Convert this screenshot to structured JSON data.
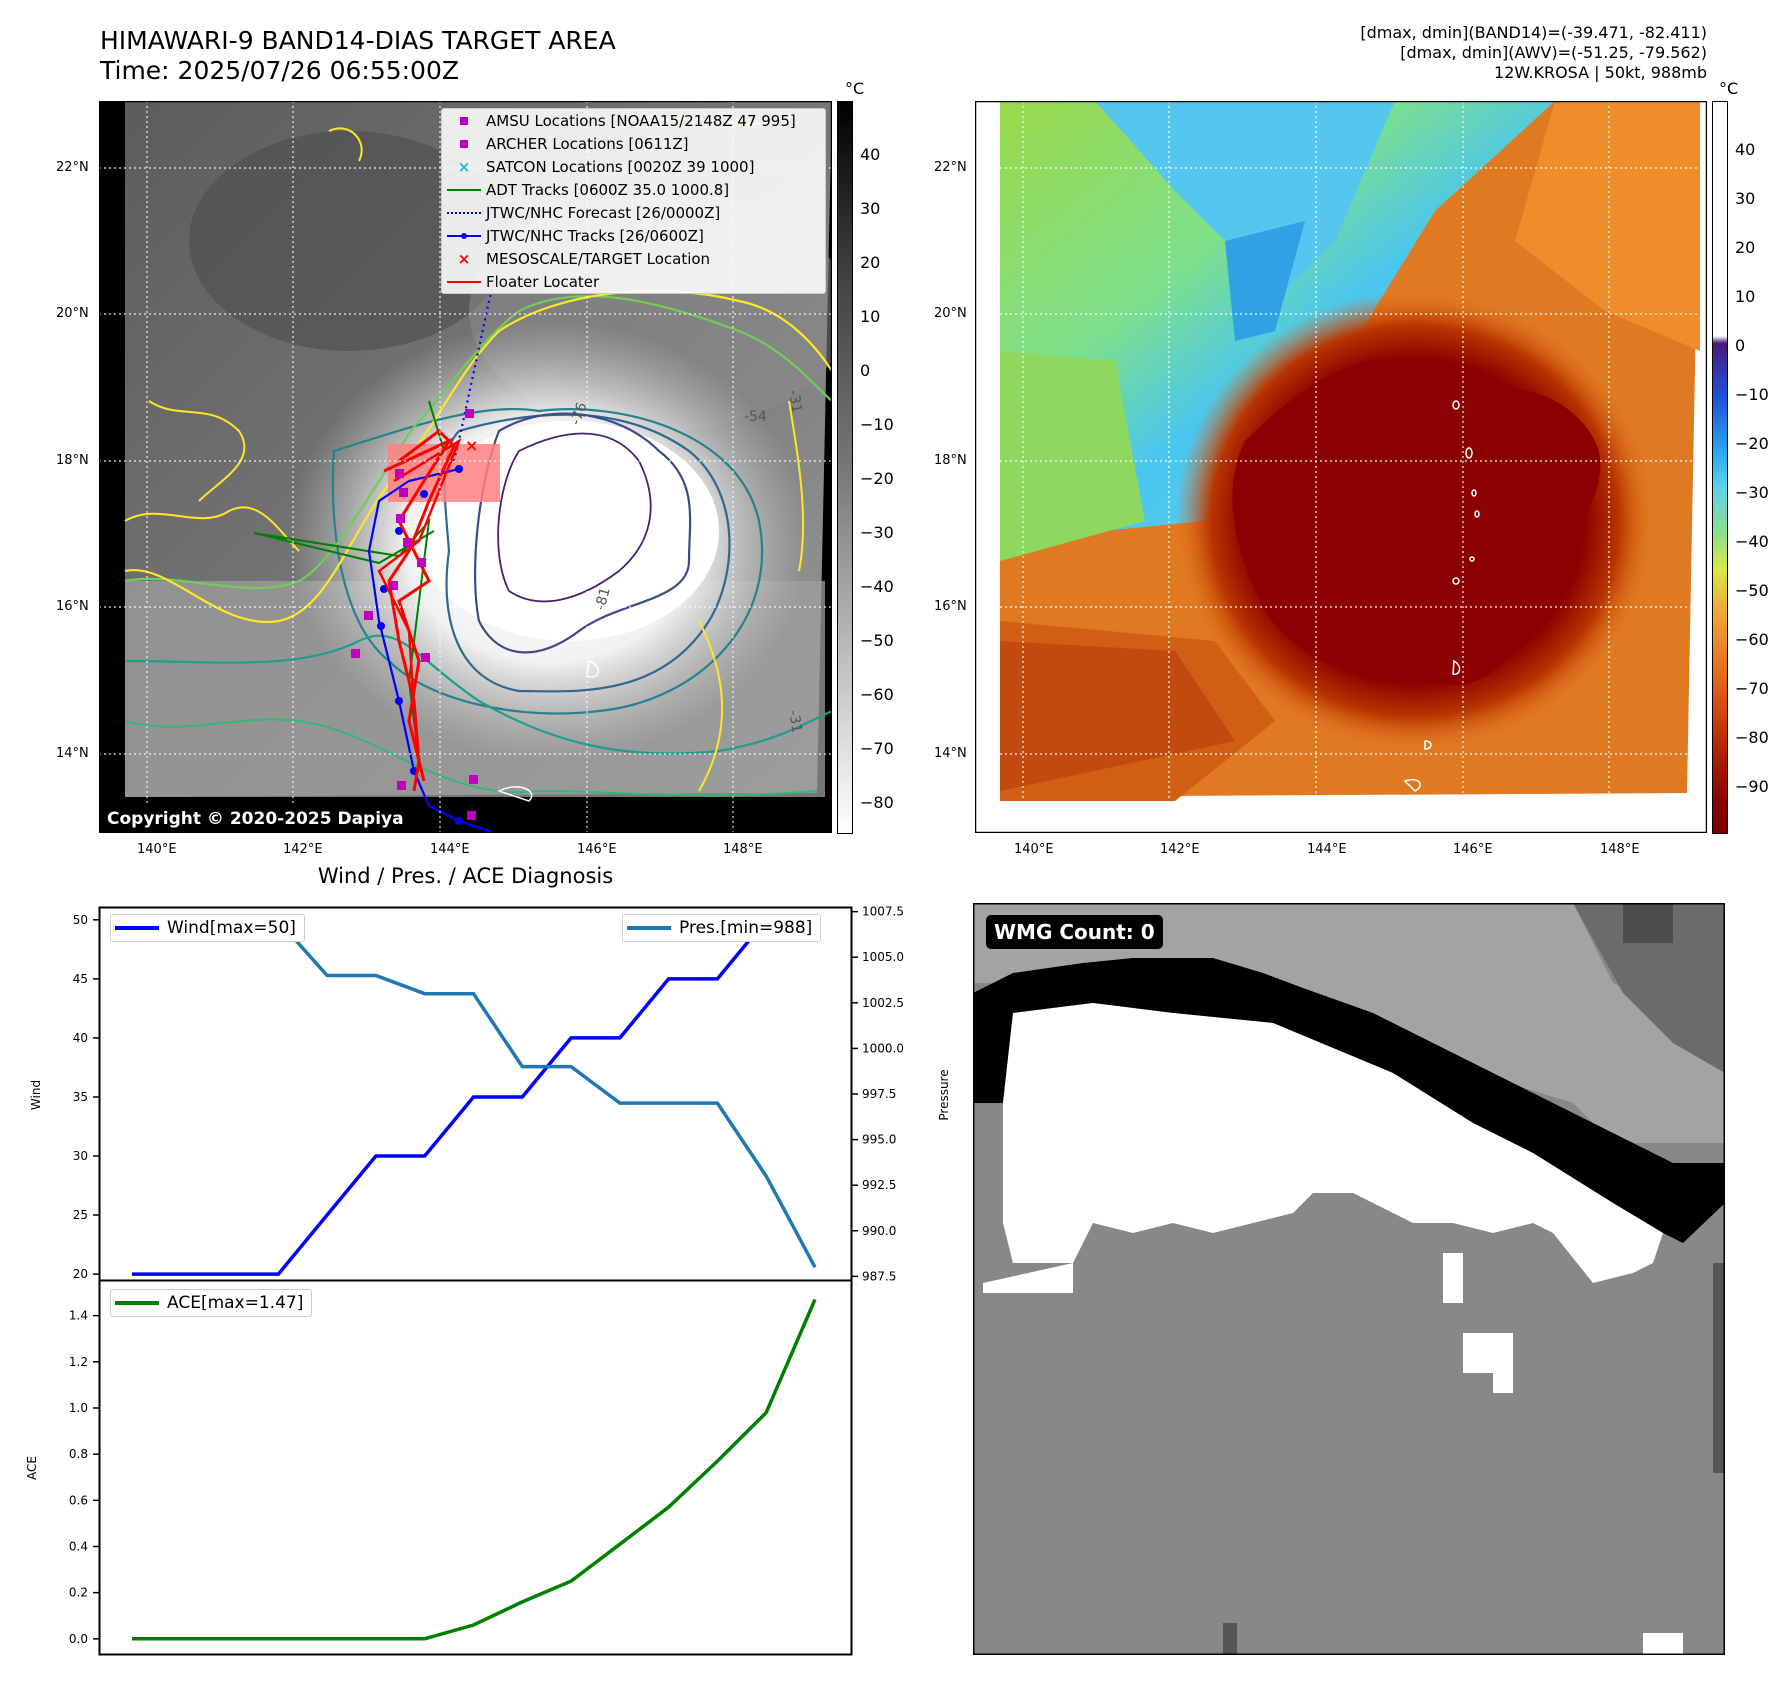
{
  "header": {
    "title_line1": "HIMAWARI-9 BAND14-DIAS TARGET AREA",
    "title_line2": "Time: 2025/07/26 06:55:00Z",
    "info_line1": "[dmax, dmin](BAND14)=(-39.471, -82.411)",
    "info_line2": "[dmax, dmin](AWV)=(-51.25, -79.562)",
    "info_line3": "12W.KROSA | 50kt, 988mb"
  },
  "map": {
    "lat_labels": [
      "22°N",
      "20°N",
      "18°N",
      "16°N",
      "14°N"
    ],
    "lon_labels": [
      "140°E",
      "142°E",
      "144°E",
      "146°E",
      "148°E"
    ],
    "contour_labels": [
      "-31",
      "-54",
      "-76",
      "-81",
      "-31"
    ],
    "copyright": "Copyright © 2020-2025 Dapiya",
    "unit": "°C",
    "colorbar_gray_ticks": [
      "40",
      "30",
      "20",
      "10",
      "0",
      "−10",
      "−20",
      "−30",
      "−40",
      "−50",
      "−60",
      "−70",
      "−80"
    ],
    "colorbar_color_ticks": [
      "40",
      "30",
      "20",
      "10",
      "0",
      "−10",
      "−20",
      "−30",
      "−40",
      "−50",
      "−60",
      "−70",
      "−80",
      "−90"
    ],
    "legend": [
      {
        "label": "AMSU Locations [NOAA15/2148Z 47 995]",
        "icon": "magenta-square",
        "color": "#bf00bf"
      },
      {
        "label": "ARCHER Locations [0611Z]",
        "icon": "magenta-square",
        "color": "#bf00bf"
      },
      {
        "label": "SATCON Locations [0020Z 39 1000]",
        "icon": "teal-x",
        "color": "#17becf"
      },
      {
        "label": "ADT Tracks [0600Z 35.0 1000.8]",
        "icon": "green-line",
        "color": "#008000"
      },
      {
        "label": "JTWC/NHC Forecast [26/0000Z]",
        "icon": "blue-dotted-line",
        "color": "#0000ff"
      },
      {
        "label": "JTWC/NHC Tracks [26/0600Z]",
        "icon": "blue-line-dot",
        "color": "#0000ff"
      },
      {
        "label": "MESOSCALE/TARGET Location",
        "icon": "red-x",
        "color": "#ff0000"
      },
      {
        "label": "Floater Locater",
        "icon": "red-line",
        "color": "#ff0000"
      }
    ]
  },
  "diagnosis": {
    "title": "Wind / Pres. / ACE Diagnosis",
    "wind_ylabel": "Wind",
    "pres_ylabel": "Pressure",
    "ace_ylabel": "ACE",
    "wind_legend": "Wind[max=50]",
    "pres_legend": "Pres.[min=988]",
    "ace_legend": "ACE[max=1.47]",
    "wind_color": "#0000ff",
    "pres_color": "#1f77b4",
    "ace_color": "#008000"
  },
  "wmg": {
    "label": "WMG Count: 0"
  },
  "chart_data": [
    {
      "type": "line",
      "title": "Wind / Pres. / ACE Diagnosis",
      "ylabel": "Wind",
      "ylim": [
        19.5,
        51
      ],
      "x": [
        0,
        1,
        2,
        3,
        4,
        5,
        6,
        7,
        8,
        9,
        10,
        11,
        12,
        13,
        14
      ],
      "series": [
        {
          "name": "Wind[max=50]",
          "values": [
            20,
            20,
            20,
            20,
            25,
            30,
            30,
            35,
            35,
            40,
            40,
            45,
            45,
            50,
            50
          ]
        }
      ]
    },
    {
      "type": "line",
      "ylabel": "Pressure",
      "ylim": [
        987.3,
        1007.7
      ],
      "x": [
        0,
        1,
        2,
        3,
        4,
        5,
        6,
        7,
        8,
        9,
        10,
        11,
        12,
        13,
        14
      ],
      "series": [
        {
          "name": "Pres.[min=988]",
          "values": [
            1007,
            1007,
            1007,
            1007,
            1004,
            1004,
            1003,
            1003,
            999,
            999,
            997,
            997,
            997,
            993,
            988
          ]
        }
      ]
    },
    {
      "type": "line",
      "ylabel": "ACE",
      "ylim": [
        -0.07,
        1.55
      ],
      "x": [
        0,
        1,
        2,
        3,
        4,
        5,
        6,
        7,
        8,
        9,
        10,
        11,
        12,
        13,
        14
      ],
      "series": [
        {
          "name": "ACE[max=1.47]",
          "values": [
            0,
            0,
            0,
            0,
            0,
            0,
            0,
            0.06,
            0.16,
            0.25,
            0.41,
            0.57,
            0.77,
            0.98,
            1.47
          ]
        }
      ]
    }
  ]
}
